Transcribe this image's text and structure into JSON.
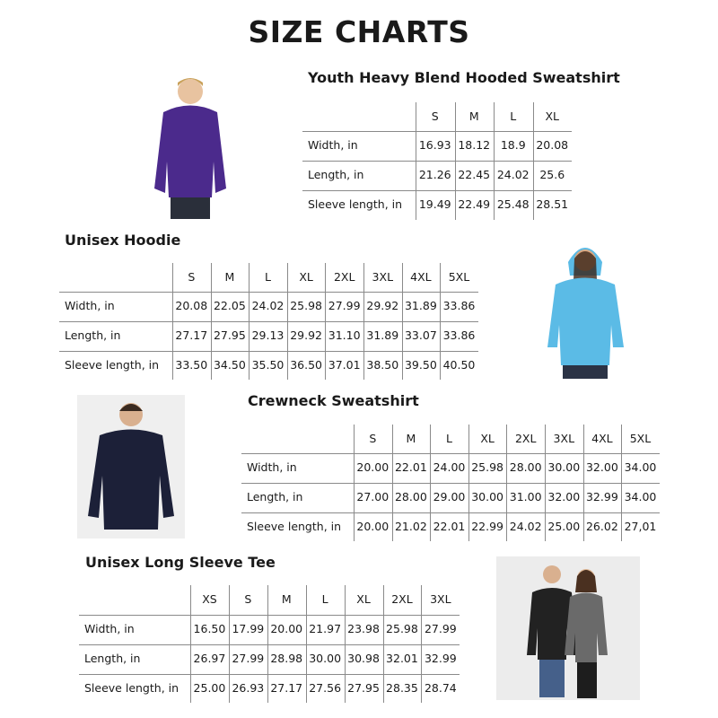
{
  "page_title": "SIZE CHARTS",
  "charts": [
    {
      "title": "Youth Heavy Blend Hooded Sweatshirt",
      "sizes": [
        "S",
        "M",
        "L",
        "XL"
      ],
      "rows": [
        {
          "label": "Width, in",
          "values": [
            "16.93",
            "18.12",
            "18.9",
            "20.08"
          ]
        },
        {
          "label": "Length, in",
          "values": [
            "21.26",
            "22.45",
            "24.02",
            "25.6"
          ]
        },
        {
          "label": "Sleeve length, in",
          "values": [
            "19.49",
            "22.49",
            "25.48",
            "28.51"
          ]
        }
      ],
      "garment_color": "#4b2a8c"
    },
    {
      "title": "Unisex Hoodie",
      "sizes": [
        "S",
        "M",
        "L",
        "XL",
        "2XL",
        "3XL",
        "4XL",
        "5XL"
      ],
      "rows": [
        {
          "label": "Width, in",
          "values": [
            "20.08",
            "22.05",
            "24.02",
            "25.98",
            "27.99",
            "29.92",
            "31.89",
            "33.86"
          ]
        },
        {
          "label": "Length, in",
          "values": [
            "27.17",
            "27.95",
            "29.13",
            "29.92",
            "31.10",
            "31.89",
            "33.07",
            "33.86"
          ]
        },
        {
          "label": "Sleeve length, in",
          "values": [
            "33.50",
            "34.50",
            "35.50",
            "36.50",
            "37.01",
            "38.50",
            "39.50",
            "40.50"
          ]
        }
      ],
      "garment_color": "#5bbbe6"
    },
    {
      "title": "Crewneck Sweatshirt",
      "sizes": [
        "S",
        "M",
        "L",
        "XL",
        "2XL",
        "3XL",
        "4XL",
        "5XL"
      ],
      "rows": [
        {
          "label": "Width, in",
          "values": [
            "20.00",
            "22.01",
            "24.00",
            "25.98",
            "28.00",
            "30.00",
            "32.00",
            "34.00"
          ]
        },
        {
          "label": "Length, in",
          "values": [
            "27.00",
            "28.00",
            "29.00",
            "30.00",
            "31.00",
            "32.00",
            "32.99",
            "34.00"
          ]
        },
        {
          "label": "Sleeve length, in",
          "values": [
            "20.00",
            "21.02",
            "22.01",
            "22.99",
            "24.02",
            "25.00",
            "26.02",
            "27,01"
          ]
        }
      ],
      "garment_color": "#1c2038"
    },
    {
      "title": "Unisex Long Sleeve Tee",
      "sizes": [
        "XS",
        "S",
        "M",
        "L",
        "XL",
        "2XL",
        "3XL"
      ],
      "rows": [
        {
          "label": "Width, in",
          "values": [
            "16.50",
            "17.99",
            "20.00",
            "21.97",
            "23.98",
            "25.98",
            "27.99"
          ]
        },
        {
          "label": "Length, in",
          "values": [
            "26.97",
            "27.99",
            "28.98",
            "30.00",
            "30.98",
            "32.01",
            "32.99"
          ]
        },
        {
          "label": "Sleeve length, in",
          "values": [
            "25.00",
            "26.93",
            "27.17",
            "27.56",
            "27.95",
            "28.35",
            "28.74"
          ]
        }
      ],
      "garment_color": "#222222"
    }
  ]
}
